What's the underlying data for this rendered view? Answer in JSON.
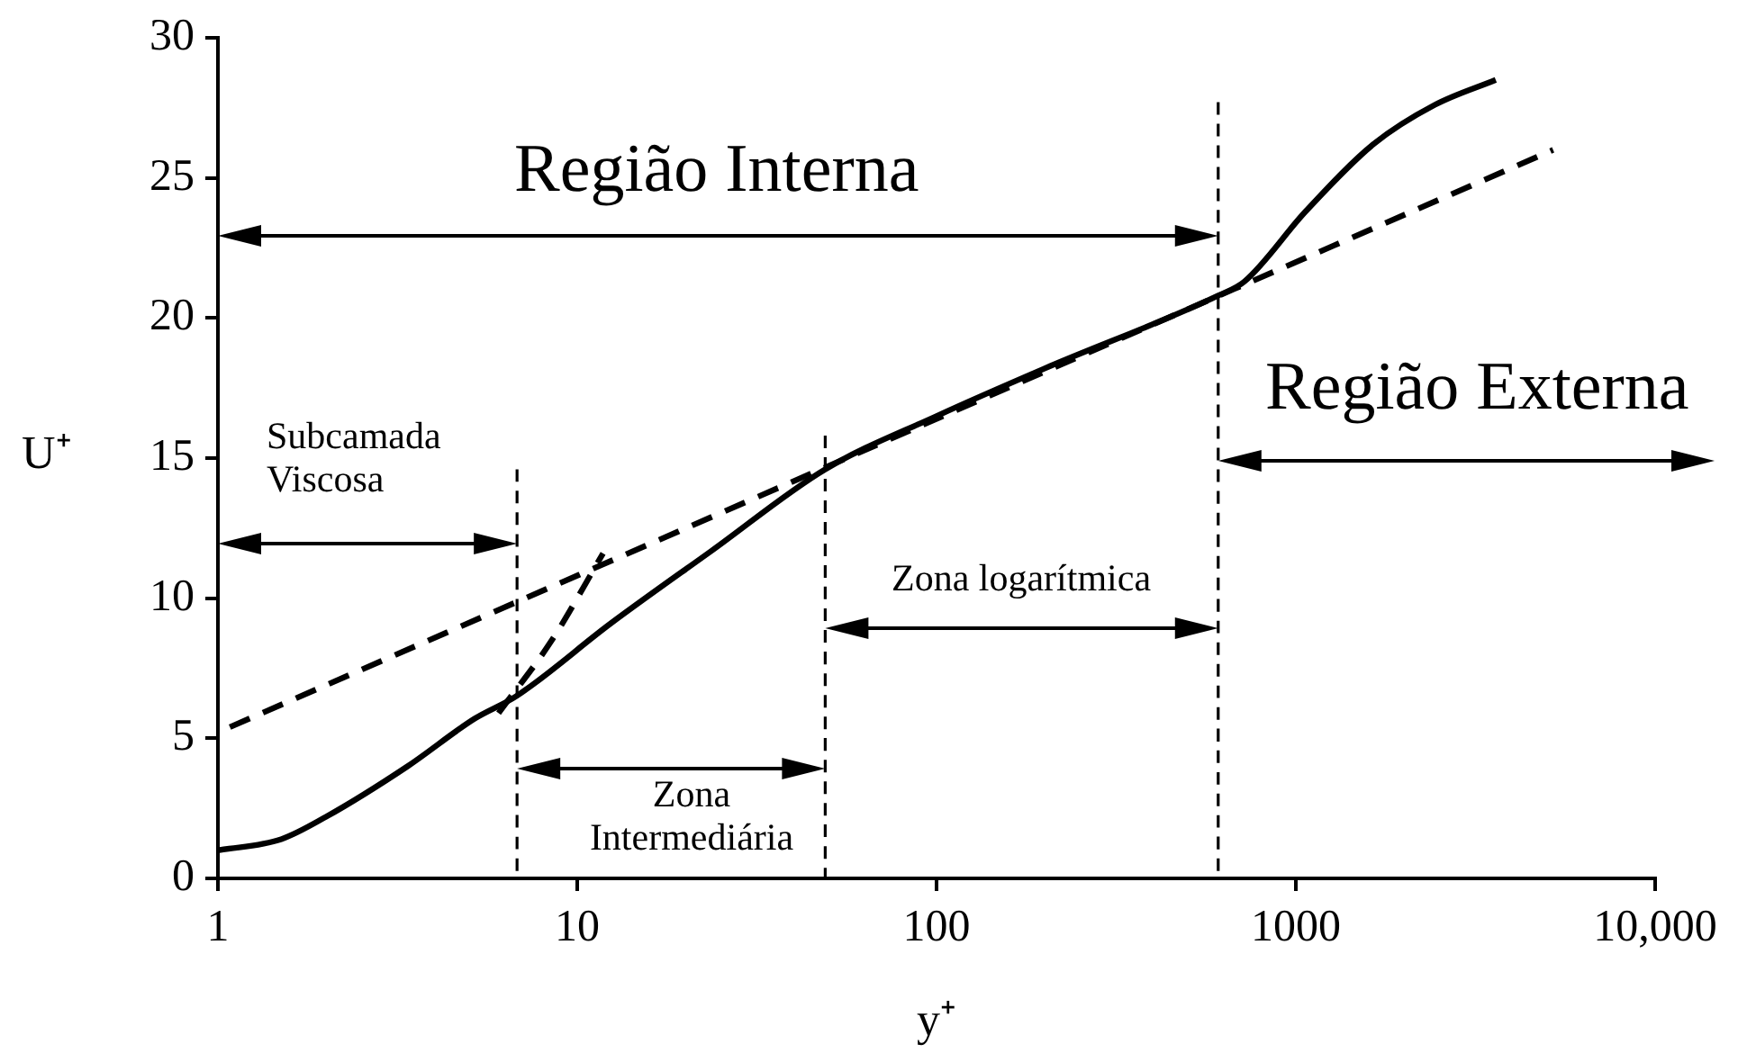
{
  "chart_data": {
    "type": "line",
    "xlabel": "y⁺",
    "ylabel": "U⁺",
    "log": "x",
    "xlim": [
      1,
      10000
    ],
    "xticks": [
      1,
      10,
      100,
      1000,
      {
        "value": 10000,
        "label": "10,000"
      }
    ],
    "ylim": [
      0,
      30
    ],
    "yticks": [
      0,
      5,
      10,
      15,
      20,
      25,
      30
    ],
    "grid": false,
    "legend": false,
    "marker": "none",
    "annotations": [
      "Região Interna",
      "Subcamada Viscosa",
      "Zona Intermediária",
      "Zona logarítmica",
      "Região Externa"
    ],
    "series": [
      {
        "type": "line",
        "line_style": "solid",
        "color": "#000000",
        "x": [
          1,
          1.5,
          2,
          3.37,
          5.18,
          6.76,
          12.4,
          23.7,
          49,
          100,
          200,
          608,
          719,
          1064,
          1643,
          2430,
          3600
        ],
        "values": [
          1.0,
          1.4,
          2.2,
          4.0,
          5.7,
          6.5,
          9.1,
          11.7,
          14.6,
          16.5,
          18.2,
          20.8,
          21.3,
          23.8,
          26.2,
          27.6,
          28.5
        ]
      },
      {
        "type": "line",
        "line_style": "dashed",
        "color": "#000000",
        "x": [
          1.08,
          5200
        ],
        "values": [
          5.4,
          26.0
        ]
      },
      {
        "type": "line",
        "line_style": "dashed",
        "color": "#000000",
        "x": [
          6.04,
          8.5,
          11.8
        ],
        "values": [
          5.9,
          8.5,
          11.6
        ]
      },
      {
        "type": "line",
        "line_style": "dashed",
        "color": "#000000",
        "x": [
          6.8,
          6.8
        ],
        "values": [
          14.6,
          0
        ]
      },
      {
        "type": "line",
        "line_style": "dashed",
        "color": "#000000",
        "x": [
          49,
          49
        ],
        "values": [
          15.8,
          0
        ]
      },
      {
        "type": "line",
        "line_style": "dashed",
        "color": "#000000",
        "x": [
          608,
          608
        ],
        "values": [
          27.7,
          0
        ]
      }
    ]
  }
}
